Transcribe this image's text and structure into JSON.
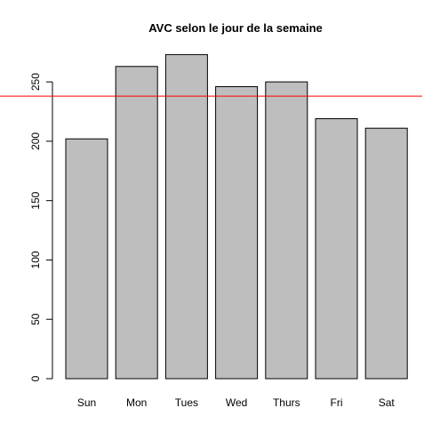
{
  "chart_data": {
    "type": "bar",
    "title": "AVC selon le jour de la semaine",
    "xlabel": "",
    "ylabel": "",
    "categories": [
      "Sun",
      "Mon",
      "Tues",
      "Wed",
      "Thurs",
      "Fri",
      "Sat"
    ],
    "values": [
      202,
      263,
      273,
      246,
      250,
      219,
      211
    ],
    "ylim": [
      0,
      273
    ],
    "yticks": [
      0,
      50,
      100,
      150,
      200,
      250
    ],
    "ytick_labels": [
      "0",
      "50",
      "100",
      "150",
      "200",
      "250"
    ],
    "reference_line": {
      "y": 238,
      "color": "#ff0000"
    },
    "bar_fill": "#bebebe",
    "bar_stroke": "#000000",
    "grid": false
  }
}
